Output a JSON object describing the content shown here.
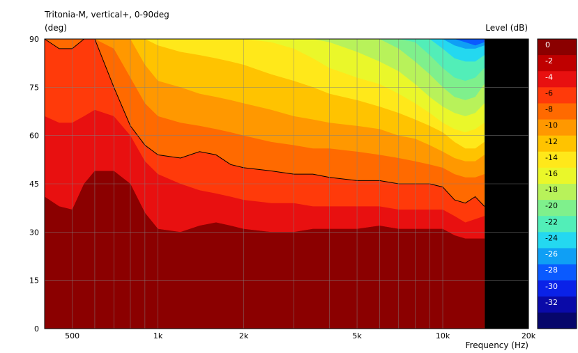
{
  "chart_data": {
    "type": "heatmap",
    "title": "Tritonia-M, vertical+, 0-90deg",
    "ylabel": "(deg)",
    "xlabel": "Frequency  (Hz)",
    "colorbar_label": "Level  (dB)",
    "xscale": "log",
    "xlim": [
      400,
      20000
    ],
    "ylim": [
      0,
      90
    ],
    "data_xmax": 14000,
    "grid": true,
    "x_tick_labels": [
      {
        "value": 500,
        "label": "500"
      },
      {
        "value": 1000,
        "label": "1k"
      },
      {
        "value": 2000,
        "label": "2k"
      },
      {
        "value": 5000,
        "label": "5k"
      },
      {
        "value": 10000,
        "label": "10k"
      },
      {
        "value": 20000,
        "label": "20k"
      }
    ],
    "y_ticks": [
      0,
      15,
      30,
      45,
      60,
      75,
      90
    ],
    "levels": [
      0,
      -2,
      -4,
      -6,
      -8,
      -10,
      -12,
      -14,
      -16,
      -18,
      -20,
      -22,
      -24,
      -26,
      -28,
      -30,
      -32
    ],
    "level_colors": [
      "#8b0000",
      "#bf0000",
      "#e81010",
      "#ff3a0a",
      "#ff6a00",
      "#ff9800",
      "#ffc300",
      "#ffe81a",
      "#eaf72a",
      "#b8f25a",
      "#7ff08c",
      "#52eeb8",
      "#24d8f0",
      "#0f9ff5",
      "#0a5aff",
      "#0a22e8",
      "#0a0aa8",
      "#06066a"
    ],
    "frequencies_hz": [
      400,
      450,
      500,
      550,
      600,
      700,
      800,
      900,
      1000,
      1200,
      1400,
      1600,
      1800,
      2000,
      2500,
      3000,
      3500,
      4000,
      5000,
      6000,
      7000,
      8000,
      9000,
      10000,
      11000,
      12000,
      13000,
      14000
    ],
    "contour_angles_deg": [
      {
        "level": -2,
        "angles": [
          41,
          38,
          37,
          45,
          49,
          49,
          45,
          36,
          31,
          30,
          32,
          33,
          32,
          31,
          30,
          30,
          31,
          31,
          31,
          32,
          31,
          31,
          31,
          31,
          29,
          28,
          28,
          28
        ]
      },
      {
        "level": -4,
        "angles": [
          66,
          64,
          64,
          66,
          68,
          66,
          60,
          52,
          48,
          45,
          43,
          42,
          41,
          40,
          39,
          39,
          38,
          38,
          38,
          38,
          37,
          37,
          37,
          37,
          35,
          33,
          34,
          35
        ]
      },
      {
        "level": -6,
        "angles": [
          90,
          87,
          87,
          90,
          90,
          75,
          63,
          57,
          54,
          53,
          55,
          54,
          51,
          50,
          49,
          48,
          48,
          47,
          46,
          46,
          45,
          45,
          45,
          44,
          40,
          39,
          41,
          38
        ]
      },
      {
        "level": -8,
        "angles": [
          90,
          90,
          90,
          90,
          90,
          87,
          78,
          70,
          66,
          64,
          63,
          62,
          61,
          60,
          58,
          57,
          56,
          56,
          55,
          54,
          53,
          52,
          51,
          50,
          48,
          47,
          47,
          48
        ]
      },
      {
        "level": -10,
        "angles": [
          90,
          90,
          90,
          90,
          90,
          90,
          90,
          82,
          77,
          75,
          73,
          72,
          71,
          70,
          68,
          66,
          65,
          64,
          63,
          62,
          60,
          59,
          57,
          55,
          53,
          52,
          52,
          54
        ]
      },
      {
        "level": -12,
        "angles": [
          90,
          90,
          90,
          90,
          90,
          90,
          90,
          90,
          88,
          86,
          85,
          84,
          83,
          82,
          79,
          77,
          75,
          73,
          71,
          69,
          67,
          65,
          63,
          61,
          58,
          56,
          56,
          58
        ]
      },
      {
        "level": -14,
        "angles": [
          90,
          90,
          90,
          90,
          90,
          90,
          90,
          90,
          90,
          90,
          90,
          90,
          90,
          90,
          89,
          87,
          84,
          81,
          78,
          76,
          73,
          70,
          67,
          64,
          62,
          61,
          62,
          64
        ]
      },
      {
        "level": -16,
        "angles": [
          90,
          90,
          90,
          90,
          90,
          90,
          90,
          90,
          90,
          90,
          90,
          90,
          90,
          90,
          90,
          90,
          90,
          89,
          86,
          83,
          80,
          76,
          72,
          69,
          67,
          66,
          67,
          70
        ]
      },
      {
        "level": -18,
        "angles": [
          90,
          90,
          90,
          90,
          90,
          90,
          90,
          90,
          90,
          90,
          90,
          90,
          90,
          90,
          90,
          90,
          90,
          90,
          90,
          90,
          87,
          83,
          79,
          75,
          72,
          71,
          72,
          76
        ]
      },
      {
        "level": -20,
        "angles": [
          90,
          90,
          90,
          90,
          90,
          90,
          90,
          90,
          90,
          90,
          90,
          90,
          90,
          90,
          90,
          90,
          90,
          90,
          90,
          90,
          90,
          89,
          85,
          81,
          78,
          77,
          78,
          81
        ]
      },
      {
        "level": -22,
        "angles": [
          90,
          90,
          90,
          90,
          90,
          90,
          90,
          90,
          90,
          90,
          90,
          90,
          90,
          90,
          90,
          90,
          90,
          90,
          90,
          90,
          90,
          90,
          90,
          87,
          84,
          83,
          83,
          85
        ]
      },
      {
        "level": -24,
        "angles": [
          90,
          90,
          90,
          90,
          90,
          90,
          90,
          90,
          90,
          90,
          90,
          90,
          90,
          90,
          90,
          90,
          90,
          90,
          90,
          90,
          90,
          90,
          90,
          90,
          88,
          87,
          87,
          88
        ]
      },
      {
        "level": -26,
        "angles": [
          90,
          90,
          90,
          90,
          90,
          90,
          90,
          90,
          90,
          90,
          90,
          90,
          90,
          90,
          90,
          90,
          90,
          90,
          90,
          90,
          90,
          90,
          90,
          90,
          90,
          89,
          88,
          89
        ]
      }
    ]
  }
}
